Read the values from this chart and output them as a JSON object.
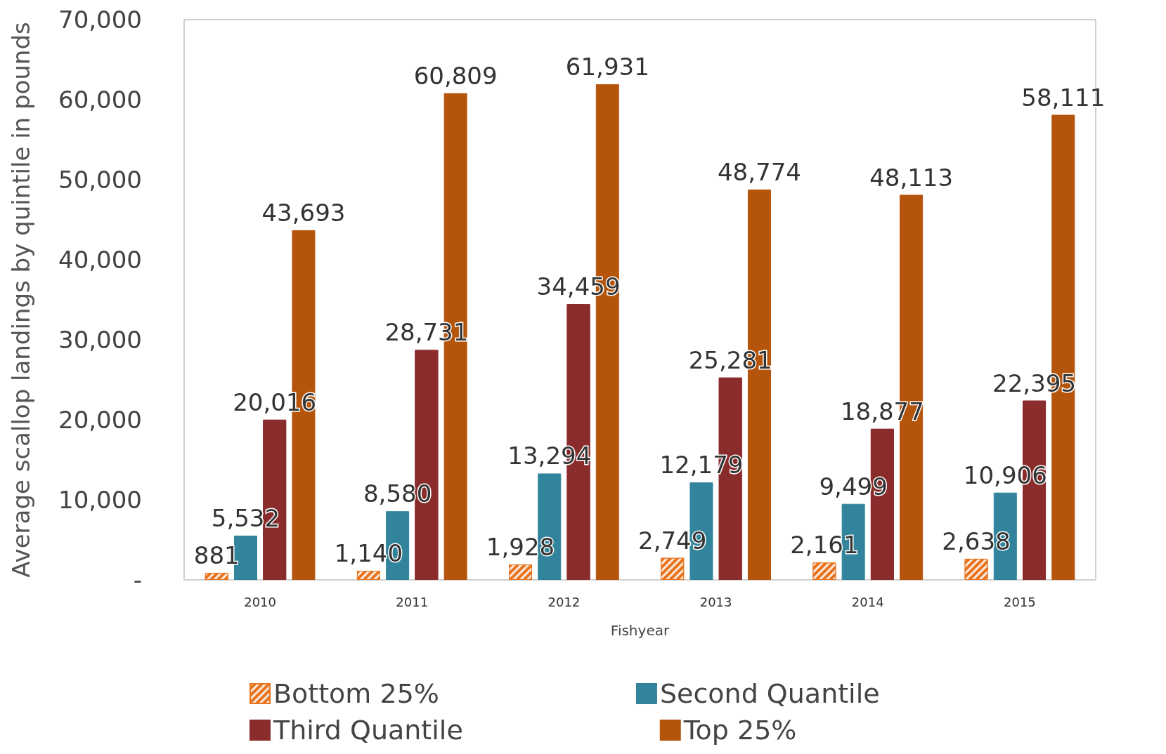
{
  "chart_data": {
    "type": "bar",
    "xlabel": "Fishyear",
    "ylabel": "Average scallop landings by quintile in pounds",
    "categories": [
      "2010",
      "2011",
      "2012",
      "2013",
      "2014",
      "2015"
    ],
    "series": [
      {
        "name": "Bottom 25%",
        "color": "#e8731e",
        "values": [
          881,
          1140,
          1928,
          2749,
          2161,
          2638
        ],
        "value_labels": [
          "881",
          "1,140",
          "1,928",
          "2,749",
          "2,161",
          "2,638"
        ]
      },
      {
        "name": "Second Quantile",
        "color": "#31849b",
        "values": [
          5532,
          8580,
          13294,
          12179,
          9499,
          10906
        ],
        "value_labels": [
          "5,532",
          "8,580",
          "13,294",
          "12,179",
          "9,499",
          "10,906"
        ]
      },
      {
        "name": "Third Quantile",
        "color": "#8b2c2c",
        "values": [
          20016,
          28731,
          34459,
          25281,
          18877,
          22395
        ],
        "value_labels": [
          "20,016",
          "28,731",
          "34,459",
          "25,281",
          "18,877",
          "22,395"
        ]
      },
      {
        "name": "Top 25%",
        "color": "#b5540b",
        "values": [
          43693,
          60809,
          61931,
          48774,
          48113,
          58111
        ],
        "value_labels": [
          "43,693",
          "60,809",
          "61,931",
          "48,774",
          "48,113",
          "58,111"
        ]
      }
    ],
    "ylim": [
      0,
      70000
    ],
    "yticks": [
      {
        "value": 0,
        "label": "-"
      },
      {
        "value": 10000,
        "label": "10,000"
      },
      {
        "value": 20000,
        "label": "20,000"
      },
      {
        "value": 30000,
        "label": "30,000"
      },
      {
        "value": 40000,
        "label": "40,000"
      },
      {
        "value": 50000,
        "label": "50,000"
      },
      {
        "value": 60000,
        "label": "60,000"
      },
      {
        "value": 70000,
        "label": "70,000"
      }
    ],
    "grid": false,
    "legend": "bottom"
  }
}
